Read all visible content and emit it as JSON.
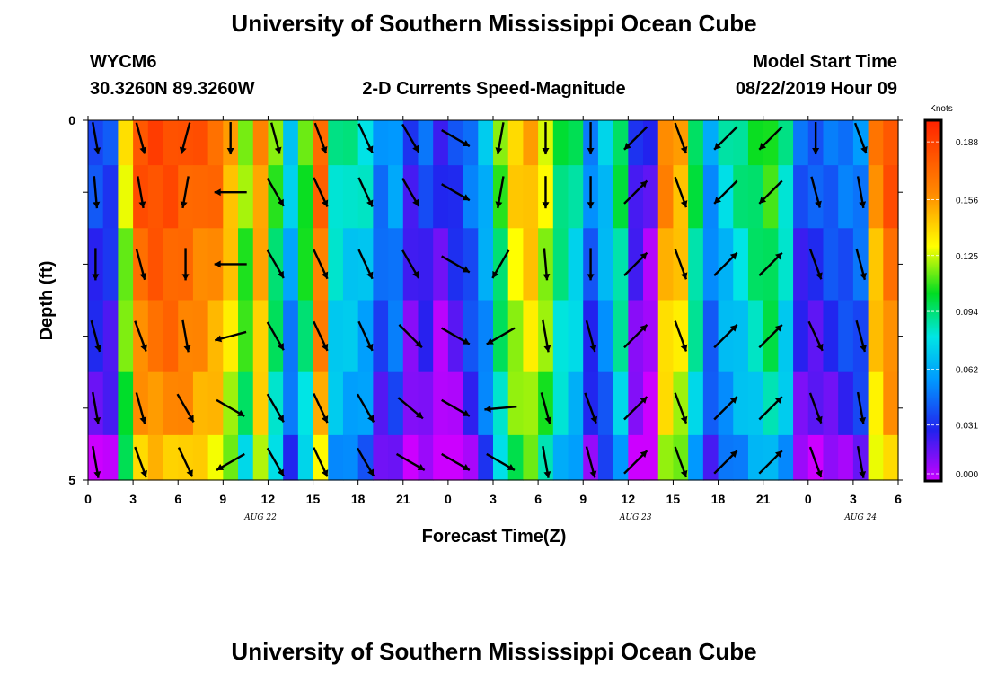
{
  "page": {
    "title_top": "University of Southern Mississippi Ocean Cube",
    "title_bottom": "University of Southern Mississippi Ocean Cube",
    "station": "WYCM6",
    "coords": "30.3260N 89.3260W",
    "subtitle": "2-D Currents Speed-Magnitude",
    "model_start_label": "Model Start Time",
    "model_start_value": "08/22/2019 Hour 09"
  },
  "colors": {
    "arrow": "#000000",
    "colormap": [
      "#cc00ff",
      "#2222ee",
      "#0099ff",
      "#00e5e5",
      "#00dd22",
      "#ffff00",
      "#ff8800",
      "#ff2200"
    ]
  },
  "chart_data": {
    "type": "heatmap",
    "xlabel": "Forecast Time(Z)",
    "ylabel": "Depth (ft)",
    "xlim": [
      0,
      54
    ],
    "ylim": [
      0,
      5
    ],
    "x_tick_values": [
      0,
      3,
      6,
      9,
      12,
      15,
      18,
      21,
      24,
      27,
      30,
      33,
      36,
      39,
      42,
      45,
      48,
      51,
      54
    ],
    "x_tick_labels": [
      "0",
      "3",
      "6",
      "9",
      "12",
      "15",
      "18",
      "21",
      "0",
      "3",
      "6",
      "9",
      "12",
      "15",
      "18",
      "21",
      "0",
      "3",
      "6"
    ],
    "y_tick_labels": [
      "0",
      "5"
    ],
    "date_labels": [
      {
        "label": "AUG  22",
        "x": 11.5
      },
      {
        "label": "AUG  23",
        "x": 36.5
      },
      {
        "label": "AUG  24",
        "x": 51.5
      }
    ],
    "colorbar": {
      "title": "Knots",
      "vmin": 0.0,
      "vmax": 0.2,
      "ticks": [
        0.0,
        0.031,
        0.062,
        0.094,
        0.125,
        0.156,
        0.188
      ],
      "tick_labels": [
        "0.000",
        "0.031",
        "0.062",
        "0.094",
        "0.125",
        "0.156",
        "0.188"
      ]
    },
    "depth_levels": [
      0.25,
      1.0,
      2.0,
      3.0,
      4.0,
      4.75
    ],
    "time_columns": [
      0,
      1,
      2,
      3,
      4,
      5,
      6,
      7,
      8,
      9,
      10,
      11,
      12,
      13,
      14,
      15,
      16,
      17,
      18,
      19,
      20,
      21,
      22,
      23,
      24,
      25,
      26,
      27,
      28,
      29,
      30,
      31,
      32,
      33,
      34,
      35,
      36,
      37,
      38,
      39,
      40,
      41,
      42,
      43,
      44,
      45,
      46,
      47,
      48,
      49,
      50,
      51,
      52,
      53
    ],
    "column_speed_knots": [
      0.03,
      0.03,
      0.12,
      0.17,
      0.175,
      0.175,
      0.17,
      0.165,
      0.16,
      0.14,
      0.11,
      0.15,
      0.1,
      0.06,
      0.1,
      0.165,
      0.08,
      0.075,
      0.07,
      0.04,
      0.05,
      0.02,
      0.03,
      0.015,
      0.025,
      0.04,
      0.06,
      0.1,
      0.13,
      0.14,
      0.12,
      0.09,
      0.08,
      0.04,
      0.06,
      0.09,
      0.02,
      0.01,
      0.15,
      0.14,
      0.09,
      0.05,
      0.07,
      0.08,
      0.09,
      0.1,
      0.08,
      0.03,
      0.03,
      0.035,
      0.04,
      0.045,
      0.15,
      0.17
    ],
    "depth_speed_offsets": [
      0.012,
      0.008,
      0.0,
      -0.006,
      -0.014,
      -0.028
    ],
    "arrow_times": [
      0,
      3,
      6,
      9,
      12,
      15,
      18,
      21,
      24,
      27,
      30,
      33,
      36,
      39,
      42,
      45,
      48,
      51
    ],
    "arrow_directions_deg": [
      [
        170,
        165,
        195,
        180,
        165,
        160,
        155,
        150,
        120,
        190,
        180,
        180,
        225,
        160,
        225,
        225,
        180,
        160
      ],
      [
        175,
        170,
        190,
        270,
        150,
        155,
        155,
        150,
        120,
        190,
        180,
        180,
        45,
        160,
        225,
        225,
        165,
        170
      ],
      [
        180,
        165,
        180,
        270,
        150,
        155,
        155,
        150,
        120,
        210,
        175,
        180,
        45,
        160,
        45,
        45,
        160,
        165
      ],
      [
        165,
        160,
        170,
        255,
        150,
        155,
        155,
        135,
        120,
        240,
        170,
        165,
        45,
        160,
        45,
        45,
        155,
        165
      ],
      [
        170,
        165,
        150,
        120,
        150,
        155,
        150,
        130,
        120,
        265,
        165,
        160,
        45,
        160,
        45,
        45,
        160,
        170
      ],
      [
        170,
        160,
        155,
        240,
        150,
        155,
        150,
        120,
        120,
        120,
        170,
        165,
        45,
        160,
        45,
        45,
        160,
        170
      ]
    ]
  }
}
